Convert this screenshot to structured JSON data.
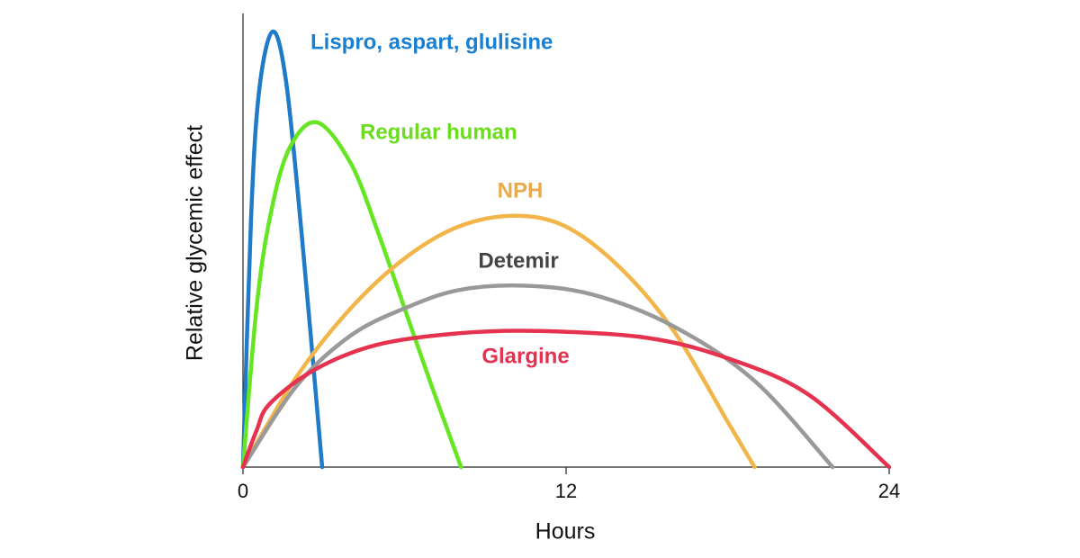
{
  "chart_data": {
    "type": "line",
    "xlabel": "Hours",
    "ylabel": "Relative glycemic effect",
    "xlim": [
      0,
      24
    ],
    "xticks": [
      0,
      12,
      24
    ],
    "ylim": [
      0,
      100
    ],
    "series": [
      {
        "name": "Lispro, aspart, glulisine",
        "color": "#1f7bc8",
        "x": [
          0,
          0.3,
          0.6,
          1.1,
          1.6,
          2.2,
          2.94
        ],
        "values": [
          0,
          55,
          83,
          96,
          85,
          50,
          0
        ]
      },
      {
        "name": "Regular human",
        "color": "#66e622",
        "x": [
          0,
          0.5,
          1,
          1.7,
          2.74,
          4,
          5,
          6,
          7,
          8.1
        ],
        "values": [
          0,
          35,
          55,
          70,
          76,
          67,
          52,
          35,
          18,
          0
        ]
      },
      {
        "name": "NPH",
        "color": "#f2b54a",
        "x": [
          0,
          2,
          4,
          6,
          8,
          10.1,
          12,
          14,
          16,
          18,
          19
        ],
        "values": [
          0,
          20,
          35,
          46,
          53,
          55.4,
          53,
          44,
          30,
          10,
          0
        ]
      },
      {
        "name": "Detemir",
        "color": "#999999",
        "x": [
          0,
          2,
          4,
          6,
          8,
          10.4,
          13,
          16,
          19,
          21.9
        ],
        "values": [
          0,
          18,
          29,
          35,
          39,
          40,
          38,
          31,
          19,
          0
        ]
      },
      {
        "name": "Glargine",
        "color": "#e5334f",
        "x": [
          0,
          0.5,
          1,
          2.7,
          5,
          8,
          11,
          15,
          18,
          21,
          24
        ],
        "values": [
          0,
          8,
          14,
          21.6,
          27,
          29.5,
          30,
          28.5,
          24,
          16,
          0
        ]
      }
    ]
  }
}
